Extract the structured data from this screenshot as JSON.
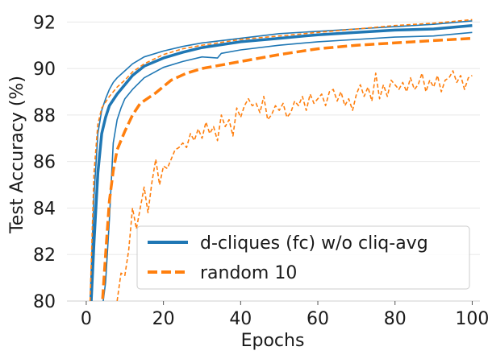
{
  "chart_data": {
    "type": "line",
    "xlabel": "Epochs",
    "ylabel": "Test Accuracy (%)",
    "xlim": [
      -5,
      102
    ],
    "ylim": [
      80,
      92.6
    ],
    "xticks": [
      0,
      20,
      40,
      60,
      80,
      100
    ],
    "yticks": [
      80,
      82,
      84,
      86,
      88,
      90,
      92
    ],
    "grid": "horizontal",
    "legend_position": "lower-right",
    "colors": {
      "blue": "#1f77b4",
      "orange": "#ff7f0e"
    },
    "legend": [
      {
        "label": "d-cliques (fc) w/o cliq-avg",
        "color": "#1f77b4",
        "style": "solid"
      },
      {
        "label": "random 10",
        "color": "#ff7f0e",
        "style": "dashed"
      }
    ],
    "series": [
      {
        "group": "d-cliques (fc) w/o cliq-avg",
        "role": "mean",
        "color": "#1f77b4",
        "style": "solid",
        "width": 3.5,
        "points": [
          [
            1,
            79
          ],
          [
            2,
            82.5
          ],
          [
            3,
            85.5
          ],
          [
            4,
            87.2
          ],
          [
            5,
            87.9
          ],
          [
            6,
            88.4
          ],
          [
            8,
            88.9
          ],
          [
            10,
            89.3
          ],
          [
            12,
            89.7
          ],
          [
            15,
            90.1
          ],
          [
            20,
            90.45
          ],
          [
            25,
            90.7
          ],
          [
            30,
            90.9
          ],
          [
            40,
            91.15
          ],
          [
            50,
            91.3
          ],
          [
            60,
            91.45
          ],
          [
            70,
            91.55
          ],
          [
            80,
            91.65
          ],
          [
            90,
            91.7
          ],
          [
            100,
            91.85
          ]
        ]
      },
      {
        "group": "d-cliques (fc) w/o cliq-avg",
        "role": "max",
        "color": "#1f77b4",
        "style": "solid",
        "width": 1.6,
        "points": [
          [
            1,
            80
          ],
          [
            2,
            84.5
          ],
          [
            3,
            87.2
          ],
          [
            4,
            88.2
          ],
          [
            5,
            88.7
          ],
          [
            6,
            89.1
          ],
          [
            7,
            89.4
          ],
          [
            8,
            89.6
          ],
          [
            10,
            89.9
          ],
          [
            12,
            90.2
          ],
          [
            15,
            90.5
          ],
          [
            20,
            90.75
          ],
          [
            25,
            90.95
          ],
          [
            30,
            91.1
          ],
          [
            40,
            91.3
          ],
          [
            50,
            91.5
          ],
          [
            60,
            91.6
          ],
          [
            70,
            91.7
          ],
          [
            80,
            91.8
          ],
          [
            90,
            91.9
          ],
          [
            100,
            92.05
          ]
        ]
      },
      {
        "group": "d-cliques (fc) w/o cliq-avg",
        "role": "min",
        "color": "#1f77b4",
        "style": "solid",
        "width": 1.6,
        "points": [
          [
            4,
            79.5
          ],
          [
            5,
            80.8
          ],
          [
            6,
            83.5
          ],
          [
            7,
            86.8
          ],
          [
            8,
            87.8
          ],
          [
            9,
            88.3
          ],
          [
            10,
            88.7
          ],
          [
            12,
            89.1
          ],
          [
            15,
            89.6
          ],
          [
            20,
            90.05
          ],
          [
            25,
            90.3
          ],
          [
            30,
            90.5
          ],
          [
            34,
            90.45
          ],
          [
            35,
            90.65
          ],
          [
            40,
            90.8
          ],
          [
            50,
            91.0
          ],
          [
            60,
            91.15
          ],
          [
            70,
            91.25
          ],
          [
            80,
            91.35
          ],
          [
            90,
            91.4
          ],
          [
            100,
            91.55
          ]
        ]
      },
      {
        "group": "random 10",
        "role": "mean",
        "color": "#ff7f0e",
        "style": "dashed",
        "width": 3.5,
        "points": [
          [
            4,
            79.5
          ],
          [
            5,
            82
          ],
          [
            6,
            84.3
          ],
          [
            7,
            85.6
          ],
          [
            8,
            86.5
          ],
          [
            10,
            87.3
          ],
          [
            12,
            88.0
          ],
          [
            14,
            88.5
          ],
          [
            18,
            88.95
          ],
          [
            22,
            89.5
          ],
          [
            26,
            89.8
          ],
          [
            30,
            90.0
          ],
          [
            40,
            90.3
          ],
          [
            50,
            90.6
          ],
          [
            60,
            90.85
          ],
          [
            70,
            91.0
          ],
          [
            80,
            91.1
          ],
          [
            90,
            91.2
          ],
          [
            100,
            91.3
          ]
        ]
      },
      {
        "group": "random 10",
        "role": "max",
        "color": "#ff7f0e",
        "style": "dashed",
        "width": 1.6,
        "points": [
          [
            1,
            80
          ],
          [
            2,
            85.5
          ],
          [
            3,
            87.6
          ],
          [
            4,
            88.3
          ],
          [
            6,
            88.8
          ],
          [
            8,
            89.2
          ],
          [
            10,
            89.5
          ],
          [
            12,
            89.85
          ],
          [
            15,
            90.2
          ],
          [
            20,
            90.6
          ],
          [
            25,
            90.85
          ],
          [
            30,
            91.0
          ],
          [
            40,
            91.25
          ],
          [
            50,
            91.4
          ],
          [
            60,
            91.55
          ],
          [
            70,
            91.7
          ],
          [
            80,
            91.85
          ],
          [
            90,
            91.95
          ],
          [
            100,
            92.1
          ]
        ]
      },
      {
        "group": "random 10",
        "role": "min",
        "color": "#ff7f0e",
        "style": "dashed",
        "width": 1.6,
        "points": [
          [
            8,
            80
          ],
          [
            9,
            81.2
          ],
          [
            10,
            81.1
          ],
          [
            11,
            82.2
          ],
          [
            12,
            84.0
          ],
          [
            13,
            83.1
          ],
          [
            14,
            84.0
          ],
          [
            15,
            84.9
          ],
          [
            16,
            83.8
          ],
          [
            17,
            85.1
          ],
          [
            18,
            86.1
          ],
          [
            19,
            85.0
          ],
          [
            20,
            85.8
          ],
          [
            21,
            85.7
          ],
          [
            22,
            86.1
          ],
          [
            23,
            86.5
          ],
          [
            24,
            86.6
          ],
          [
            25,
            86.8
          ],
          [
            26,
            86.6
          ],
          [
            27,
            87.2
          ],
          [
            28,
            86.9
          ],
          [
            29,
            87.4
          ],
          [
            30,
            87.0
          ],
          [
            31,
            87.7
          ],
          [
            32,
            87.2
          ],
          [
            33,
            87.5
          ],
          [
            34,
            86.9
          ],
          [
            35,
            88.0
          ],
          [
            36,
            87.5
          ],
          [
            37,
            87.8
          ],
          [
            38,
            87.1
          ],
          [
            39,
            88.3
          ],
          [
            40,
            87.9
          ],
          [
            41,
            88.4
          ],
          [
            42,
            88.7
          ],
          [
            43,
            88.4
          ],
          [
            44,
            88.5
          ],
          [
            45,
            88.1
          ],
          [
            46,
            88.8
          ],
          [
            47,
            87.8
          ],
          [
            48,
            88.0
          ],
          [
            49,
            88.4
          ],
          [
            50,
            88.2
          ],
          [
            51,
            88.5
          ],
          [
            52,
            87.9
          ],
          [
            53,
            88.1
          ],
          [
            54,
            88.6
          ],
          [
            55,
            88.4
          ],
          [
            56,
            88.8
          ],
          [
            57,
            88.2
          ],
          [
            58,
            88.9
          ],
          [
            59,
            88.5
          ],
          [
            60,
            88.7
          ],
          [
            61,
            88.9
          ],
          [
            62,
            88.4
          ],
          [
            63,
            89.0
          ],
          [
            64,
            89.1
          ],
          [
            65,
            88.6
          ],
          [
            66,
            89.0
          ],
          [
            67,
            88.4
          ],
          [
            68,
            88.7
          ],
          [
            69,
            88.2
          ],
          [
            70,
            88.9
          ],
          [
            71,
            89.3
          ],
          [
            72,
            88.8
          ],
          [
            73,
            89.2
          ],
          [
            74,
            88.6
          ],
          [
            75,
            89.8
          ],
          [
            76,
            88.7
          ],
          [
            77,
            89.3
          ],
          [
            78,
            88.8
          ],
          [
            79,
            89.5
          ],
          [
            80,
            89.3
          ],
          [
            81,
            89.1
          ],
          [
            82,
            89.4
          ],
          [
            83,
            89.0
          ],
          [
            84,
            89.6
          ],
          [
            85,
            89.1
          ],
          [
            86,
            89.3
          ],
          [
            87,
            89.8
          ],
          [
            88,
            89.0
          ],
          [
            89,
            89.5
          ],
          [
            90,
            89.2
          ],
          [
            91,
            89.7
          ],
          [
            92,
            89.0
          ],
          [
            93,
            89.5
          ],
          [
            94,
            89.6
          ],
          [
            95,
            89.9
          ],
          [
            96,
            89.4
          ],
          [
            97,
            89.7
          ],
          [
            98,
            89.1
          ],
          [
            99,
            89.6
          ],
          [
            100,
            89.7
          ]
        ]
      }
    ]
  }
}
